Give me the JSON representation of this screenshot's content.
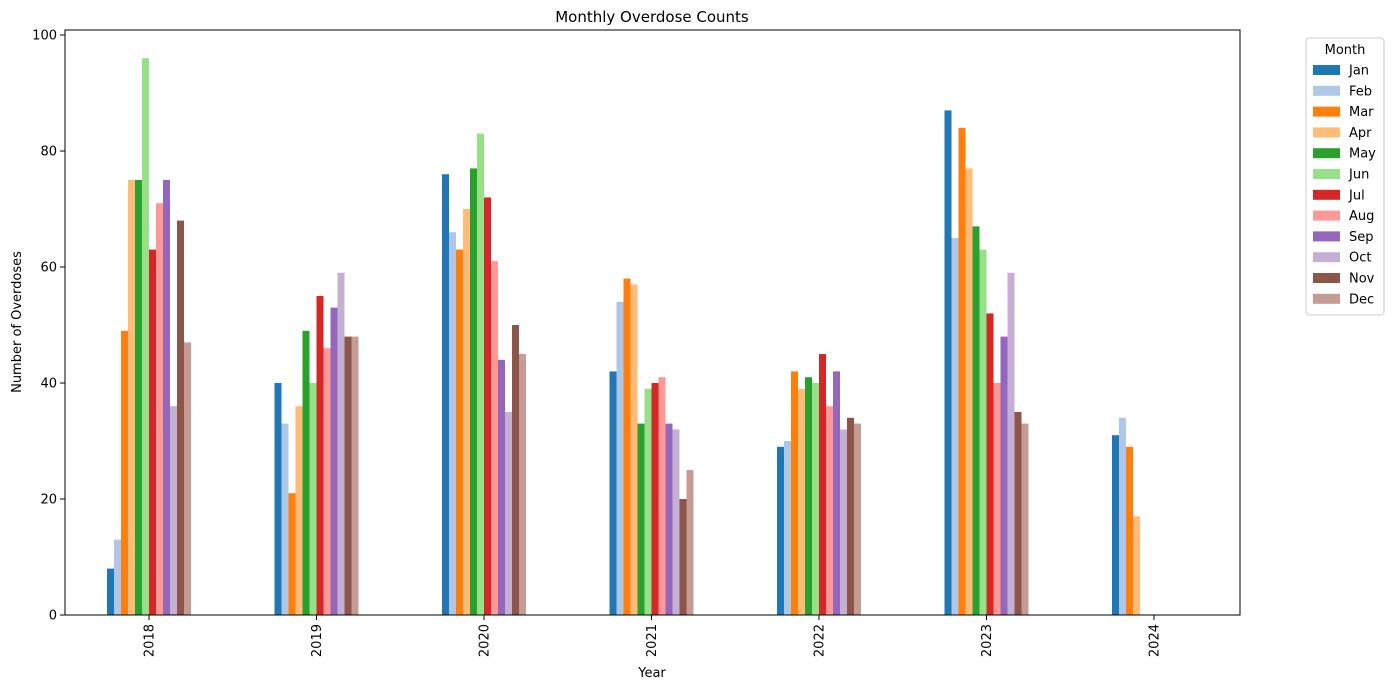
{
  "chart_data": {
    "type": "bar",
    "title": "Monthly Overdose Counts",
    "xlabel": "Year",
    "ylabel": "Number of Overdoses",
    "categories": [
      "2018",
      "2019",
      "2020",
      "2021",
      "2022",
      "2023",
      "2024"
    ],
    "ylim": [
      0,
      100
    ],
    "yticks": [
      0,
      20,
      40,
      60,
      80,
      100
    ],
    "grid": false,
    "legend": {
      "title": "Month",
      "placement": "outside-top-right"
    },
    "series": [
      {
        "name": "Jan",
        "color": "#1f77b4",
        "values": [
          8,
          40,
          76,
          42,
          29,
          87,
          31
        ]
      },
      {
        "name": "Feb",
        "color": "#aec7e8",
        "values": [
          13,
          33,
          66,
          54,
          30,
          65,
          34
        ]
      },
      {
        "name": "Mar",
        "color": "#ff7f0e",
        "values": [
          49,
          21,
          63,
          58,
          42,
          84,
          29
        ]
      },
      {
        "name": "Apr",
        "color": "#ffbb78",
        "values": [
          75,
          36,
          70,
          57,
          39,
          77,
          17
        ]
      },
      {
        "name": "May",
        "color": "#2ca02c",
        "values": [
          75,
          49,
          77,
          33,
          41,
          67,
          null
        ]
      },
      {
        "name": "Jun",
        "color": "#98df8a",
        "values": [
          96,
          40,
          83,
          39,
          40,
          63,
          null
        ]
      },
      {
        "name": "Jul",
        "color": "#d62728",
        "values": [
          63,
          55,
          72,
          40,
          45,
          52,
          null
        ]
      },
      {
        "name": "Aug",
        "color": "#ff9896",
        "values": [
          71,
          46,
          61,
          41,
          36,
          40,
          null
        ]
      },
      {
        "name": "Sep",
        "color": "#9467bd",
        "values": [
          75,
          53,
          44,
          33,
          42,
          48,
          null
        ]
      },
      {
        "name": "Oct",
        "color": "#c5b0d5",
        "values": [
          36,
          59,
          35,
          32,
          32,
          59,
          null
        ]
      },
      {
        "name": "Nov",
        "color": "#8c564b",
        "values": [
          68,
          48,
          50,
          20,
          34,
          35,
          null
        ]
      },
      {
        "name": "Dec",
        "color": "#c49c94",
        "values": [
          47,
          48,
          45,
          25,
          33,
          33,
          null
        ]
      }
    ]
  }
}
